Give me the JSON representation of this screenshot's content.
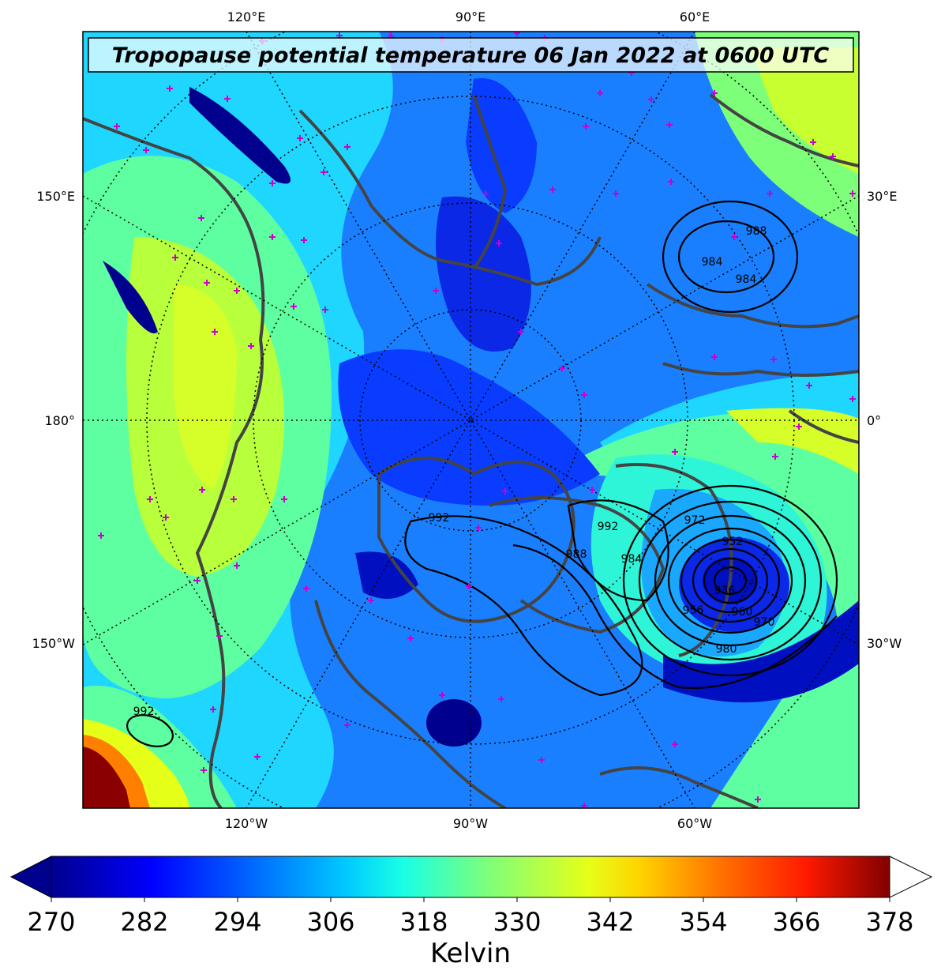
{
  "title": "Tropopause potential temperature 06 Jan 2022 at 0600 UTC",
  "map": {
    "projection": "north-polar-stereographic",
    "variable": "tropopause potential temperature",
    "colormap": "jet",
    "top_longitude_labels": [
      "120°E",
      "90°E",
      "60°E"
    ],
    "bottom_longitude_labels": [
      "120°W",
      "90°W",
      "60°W"
    ],
    "left_longitude_labels": [
      "150°E",
      "180°",
      "150°W"
    ],
    "right_longitude_labels": [
      "30°E",
      "0°",
      "30°W"
    ],
    "coastline_color": "#444444",
    "station_marker_color": "#cc00cc",
    "pressure_contour_labels": [
      "988",
      "984",
      "984",
      "992",
      "992",
      "988",
      "984",
      "972",
      "952",
      "936",
      "956",
      "960",
      "970",
      "980",
      "992"
    ]
  },
  "colorbar": {
    "label": "Kelvin",
    "ticks": [
      "270",
      "282",
      "294",
      "306",
      "318",
      "330",
      "342",
      "354",
      "366",
      "378"
    ],
    "min": 270,
    "max": 378,
    "extend": "both",
    "colors": [
      "#00008f",
      "#0000ff",
      "#0080ff",
      "#00ffff",
      "#80ff80",
      "#ffff00",
      "#ff8000",
      "#ff0000",
      "#800000"
    ]
  }
}
